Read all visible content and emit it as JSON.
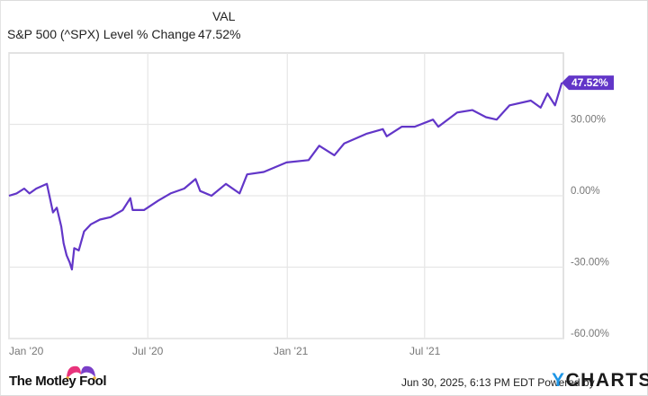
{
  "legend": {
    "column_header": "VAL",
    "series_name": "S&P 500 (^SPX) Level % Change",
    "series_value": "47.52%"
  },
  "colors": {
    "line": "#6236c8",
    "badge": "#6236c8",
    "grid": "#e6e6e6",
    "axis_text": "#777777",
    "ycharts_blue": "#1e96e6",
    "fool_pink": "#e8337b",
    "fool_purple": "#7a3fc8",
    "fool_bells": "#f2b33d"
  },
  "end_badge": {
    "label": "47.52%"
  },
  "footer": {
    "brand_left": "The Motley Fool",
    "timestamp": "Jun 30, 2025, 6:13 PM EDT",
    "powered_by": "Powered by",
    "brand_right_y": "Y",
    "brand_right_rest": "CHARTS"
  },
  "chart_data": {
    "type": "line",
    "title": "S&P 500 (^SPX) Level % Change",
    "xlabel": "",
    "ylabel": "",
    "ylim": [
      -60,
      60
    ],
    "yticks": [
      30,
      0,
      -30,
      -60
    ],
    "ytick_labels": [
      "30.00%",
      "0.00%",
      "-30.00%",
      "-60.00%"
    ],
    "xtick_labels": [
      "Jan '20",
      "Jul '20",
      "Jan '21",
      "Jul '21"
    ],
    "grid": true,
    "legend_position": "top-left",
    "final_value": 47.52,
    "series": [
      {
        "name": "S&P 500 (^SPX) Level % Change",
        "x": [
          "2019-12-31",
          "2020-01-10",
          "2020-01-20",
          "2020-01-27",
          "2020-02-05",
          "2020-02-19",
          "2020-02-27",
          "2020-03-03",
          "2020-03-09",
          "2020-03-12",
          "2020-03-16",
          "2020-03-20",
          "2020-03-23",
          "2020-03-26",
          "2020-04-01",
          "2020-04-08",
          "2020-04-17",
          "2020-04-29",
          "2020-05-13",
          "2020-05-29",
          "2020-06-08",
          "2020-06-11",
          "2020-06-26",
          "2020-07-15",
          "2020-07-31",
          "2020-08-18",
          "2020-09-02",
          "2020-09-08",
          "2020-09-23",
          "2020-10-12",
          "2020-10-30",
          "2020-11-09",
          "2020-12-01",
          "2020-12-31",
          "2021-01-29",
          "2021-02-12",
          "2021-03-04",
          "2021-03-17",
          "2021-04-15",
          "2021-05-07",
          "2021-05-12",
          "2021-06-01",
          "2021-06-18",
          "2021-07-12",
          "2021-07-19",
          "2021-08-13",
          "2021-09-02",
          "2021-09-20",
          "2021-10-04",
          "2021-10-21",
          "2021-11-18",
          "2021-12-01",
          "2021-12-10",
          "2021-12-20",
          "2021-12-29"
        ],
        "values": [
          0,
          1,
          3,
          1,
          3,
          5,
          -7,
          -5,
          -13,
          -20,
          -25,
          -28,
          -31,
          -22,
          -23,
          -15,
          -12,
          -10,
          -9,
          -6,
          -1,
          -6,
          -6,
          -2,
          1,
          3,
          7,
          2,
          0,
          5,
          1,
          9,
          10,
          14,
          15,
          21,
          17,
          22,
          26,
          28,
          25,
          29,
          29,
          32,
          29,
          35,
          36,
          33,
          32,
          38,
          40,
          37,
          43,
          38,
          47.52
        ]
      }
    ]
  }
}
